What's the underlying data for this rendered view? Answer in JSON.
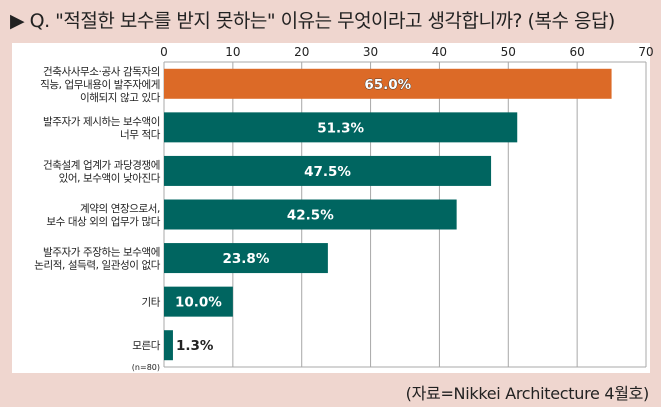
{
  "title": "▶ Q. \"적절한 보수를 받지 못하는\" 이유는 무엇이라고 생각합니까? (복수 응답)",
  "source": "(자료=Nikkei Architecture 4월호)",
  "colors": {
    "highlight": "#dc6a27",
    "bar": "#006560",
    "grid": "#a8a8a8",
    "background": "#efd6cf"
  },
  "chart_data": {
    "type": "bar",
    "orientation": "horizontal",
    "title": "\"적절한 보수를 받지 못하는\" 이유는 무엇이라고 생각합니까? (복수 응답)",
    "xlabel": "",
    "ylabel": "",
    "xlim": [
      0,
      70
    ],
    "xticks": [
      "0",
      "10",
      "20",
      "30",
      "40",
      "50",
      "60",
      "70"
    ],
    "grid": true,
    "note": "(n=80)",
    "categories": [
      [
        "건축사사무소·공사 감독자의",
        "직능, 업무내용이 발주자에게",
        "이해되지 않고 있다"
      ],
      [
        "발주자가 제시하는 보수액이",
        "너무 적다"
      ],
      [
        "건축설계 업계가 과당경쟁에",
        "있어, 보수액이 낮아진다"
      ],
      [
        "계약의 연장으로서,",
        "보수 대상 외의 업무가 많다"
      ],
      [
        "발주자가 주장하는 보수액에",
        "논리적, 설득력, 일관성이 없다"
      ],
      [
        "기타"
      ],
      [
        "모른다"
      ]
    ],
    "values": [
      65.0,
      51.3,
      47.5,
      42.5,
      23.8,
      10.0,
      1.3
    ],
    "labels": [
      "65.0%",
      "51.3%",
      "47.5%",
      "42.5%",
      "23.8%",
      "10.0%",
      "1.3%"
    ],
    "highlight_index": 0
  }
}
